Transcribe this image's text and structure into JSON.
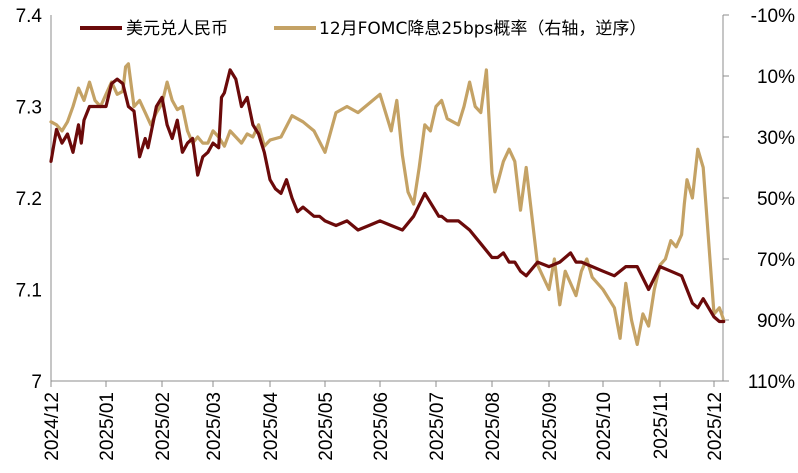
{
  "chart_data": {
    "type": "line",
    "title": "",
    "xlabel": "",
    "ylabel_left": "",
    "ylabel_right": "",
    "x_ticks": [
      "2024/12",
      "2025/01",
      "2025/02",
      "2025/03",
      "2025/04",
      "2025/05",
      "2025/06",
      "2025/07",
      "2025/08",
      "2025/09",
      "2025/10",
      "2025/11",
      "2025/12"
    ],
    "y_left": {
      "min": 7.0,
      "max": 7.4,
      "ticks": [
        7,
        7.1,
        7.2,
        7.3,
        7.4
      ],
      "tick_labels": [
        "7",
        "7.1",
        "7.2",
        "7.3",
        "7.4"
      ]
    },
    "y_right": {
      "min": -10,
      "max": 110,
      "inverted": true,
      "ticks": [
        -10,
        10,
        30,
        50,
        70,
        90,
        110
      ],
      "tick_labels": [
        "-10%",
        "10%",
        "30%",
        "50%",
        "70%",
        "90%",
        "110%"
      ]
    },
    "grid": false,
    "legend_position": "top",
    "legend": [
      "美元兑人民币",
      "12月FOMC降息25bps概率（右轴，逆序）"
    ],
    "series": [
      {
        "name": "美元兑人民币",
        "axis": "left",
        "color": "#6B0A0A",
        "x_month": [
          0,
          0.1,
          0.2,
          0.3,
          0.4,
          0.5,
          0.55,
          0.6,
          0.7,
          0.8,
          0.9,
          1.0,
          1.1,
          1.2,
          1.3,
          1.4,
          1.5,
          1.6,
          1.7,
          1.75,
          1.8,
          1.9,
          2.0,
          2.1,
          2.2,
          2.3,
          2.4,
          2.5,
          2.6,
          2.7,
          2.8,
          2.9,
          3.0,
          3.1,
          3.15,
          3.2,
          3.3,
          3.4,
          3.5,
          3.6,
          3.7,
          3.8,
          3.9,
          4.0,
          4.1,
          4.2,
          4.3,
          4.4,
          4.5,
          4.6,
          4.7,
          4.8,
          4.9,
          5.0,
          5.2,
          5.4,
          5.6,
          5.8,
          6.0,
          6.2,
          6.4,
          6.6,
          6.8,
          7.0,
          7.05,
          7.1,
          7.2,
          7.4,
          7.6,
          7.8,
          8.0,
          8.1,
          8.2,
          8.3,
          8.4,
          8.5,
          8.6,
          8.8,
          9.0,
          9.2,
          9.4,
          9.5,
          9.6,
          9.8,
          10.0,
          10.2,
          10.4,
          10.6,
          10.8,
          11.0,
          11.2,
          11.4,
          11.5,
          11.6,
          11.7,
          11.8,
          11.9,
          12.0,
          12.1,
          12.18
        ],
        "values": [
          7.24,
          7.275,
          7.26,
          7.27,
          7.25,
          7.28,
          7.26,
          7.285,
          7.3,
          7.3,
          7.3,
          7.3,
          7.325,
          7.33,
          7.325,
          7.3,
          7.295,
          7.245,
          7.265,
          7.255,
          7.27,
          7.3,
          7.31,
          7.28,
          7.265,
          7.285,
          7.25,
          7.26,
          7.265,
          7.225,
          7.245,
          7.25,
          7.26,
          7.255,
          7.31,
          7.315,
          7.34,
          7.33,
          7.3,
          7.31,
          7.28,
          7.27,
          7.25,
          7.22,
          7.21,
          7.205,
          7.22,
          7.2,
          7.185,
          7.19,
          7.185,
          7.18,
          7.18,
          7.175,
          7.17,
          7.175,
          7.165,
          7.17,
          7.175,
          7.17,
          7.165,
          7.18,
          7.205,
          7.185,
          7.18,
          7.18,
          7.175,
          7.175,
          7.165,
          7.15,
          7.135,
          7.135,
          7.14,
          7.13,
          7.13,
          7.12,
          7.115,
          7.13,
          7.125,
          7.13,
          7.14,
          7.13,
          7.13,
          7.125,
          7.12,
          7.115,
          7.125,
          7.125,
          7.1,
          7.125,
          7.12,
          7.115,
          7.1,
          7.085,
          7.08,
          7.09,
          7.08,
          7.07,
          7.065,
          7.065
        ]
      },
      {
        "name": "12月FOMC降息25bps概率（右轴，逆序）",
        "axis": "right",
        "color": "#C4A265",
        "x_month": [
          0,
          0.1,
          0.2,
          0.3,
          0.4,
          0.5,
          0.6,
          0.7,
          0.8,
          0.9,
          1.0,
          1.1,
          1.2,
          1.3,
          1.35,
          1.4,
          1.5,
          1.6,
          1.7,
          1.8,
          1.9,
          2.0,
          2.1,
          2.2,
          2.3,
          2.4,
          2.5,
          2.6,
          2.7,
          2.8,
          2.9,
          3.0,
          3.1,
          3.2,
          3.3,
          3.4,
          3.5,
          3.6,
          3.7,
          3.8,
          3.9,
          4.0,
          4.2,
          4.4,
          4.6,
          4.8,
          5.0,
          5.2,
          5.4,
          5.6,
          5.8,
          6.0,
          6.1,
          6.2,
          6.3,
          6.4,
          6.5,
          6.6,
          6.7,
          6.8,
          6.9,
          7.0,
          7.1,
          7.2,
          7.4,
          7.5,
          7.6,
          7.7,
          7.8,
          7.9,
          8.0,
          8.05,
          8.1,
          8.2,
          8.3,
          8.4,
          8.5,
          8.6,
          8.8,
          9.0,
          9.1,
          9.2,
          9.3,
          9.4,
          9.5,
          9.6,
          9.7,
          9.8,
          10.0,
          10.2,
          10.3,
          10.4,
          10.5,
          10.6,
          10.7,
          10.8,
          10.9,
          11.0,
          11.1,
          11.2,
          11.3,
          11.4,
          11.45,
          11.5,
          11.6,
          11.7,
          11.8,
          12.0,
          12.1,
          12.18
        ],
        "values": [
          25,
          26,
          28,
          25,
          20,
          14,
          18,
          12,
          18,
          20,
          16,
          12,
          16,
          15,
          7,
          6,
          20,
          18,
          22,
          26,
          22,
          19,
          12,
          18,
          21,
          20,
          28,
          32,
          30,
          32,
          32,
          28,
          30,
          33,
          28,
          30,
          32,
          29,
          30,
          26,
          33,
          31,
          30,
          23,
          25,
          28,
          35,
          22,
          20,
          22,
          19,
          16,
          22,
          28,
          18,
          36,
          48,
          52,
          40,
          26,
          28,
          20,
          18,
          24,
          26,
          20,
          12,
          20,
          22,
          8,
          42,
          48,
          45,
          38,
          34,
          38,
          54,
          40,
          72,
          80,
          70,
          85,
          74,
          78,
          82,
          74,
          70,
          76,
          80,
          86,
          96,
          78,
          90,
          98,
          88,
          92,
          80,
          72,
          70,
          64,
          66,
          62,
          52,
          44,
          50,
          34,
          40,
          88,
          86,
          90
        ]
      }
    ]
  },
  "legend": {
    "items": [
      {
        "label": "美元兑人民币",
        "color": "#6B0A0A"
      },
      {
        "label": "12月FOMC降息25bps概率（右轴，逆序）",
        "color": "#C4A265"
      }
    ]
  },
  "axes": {
    "left_ticks": [
      "7.4",
      "7.3",
      "7.2",
      "7.1",
      "7"
    ],
    "right_ticks": [
      "-10%",
      "10%",
      "30%",
      "50%",
      "70%",
      "90%",
      "110%"
    ],
    "x_ticks": [
      "2024/12",
      "2025/01",
      "2025/02",
      "2025/03",
      "2025/04",
      "2025/05",
      "2025/06",
      "2025/07",
      "2025/08",
      "2025/09",
      "2025/10",
      "2025/11",
      "2025/12"
    ]
  }
}
